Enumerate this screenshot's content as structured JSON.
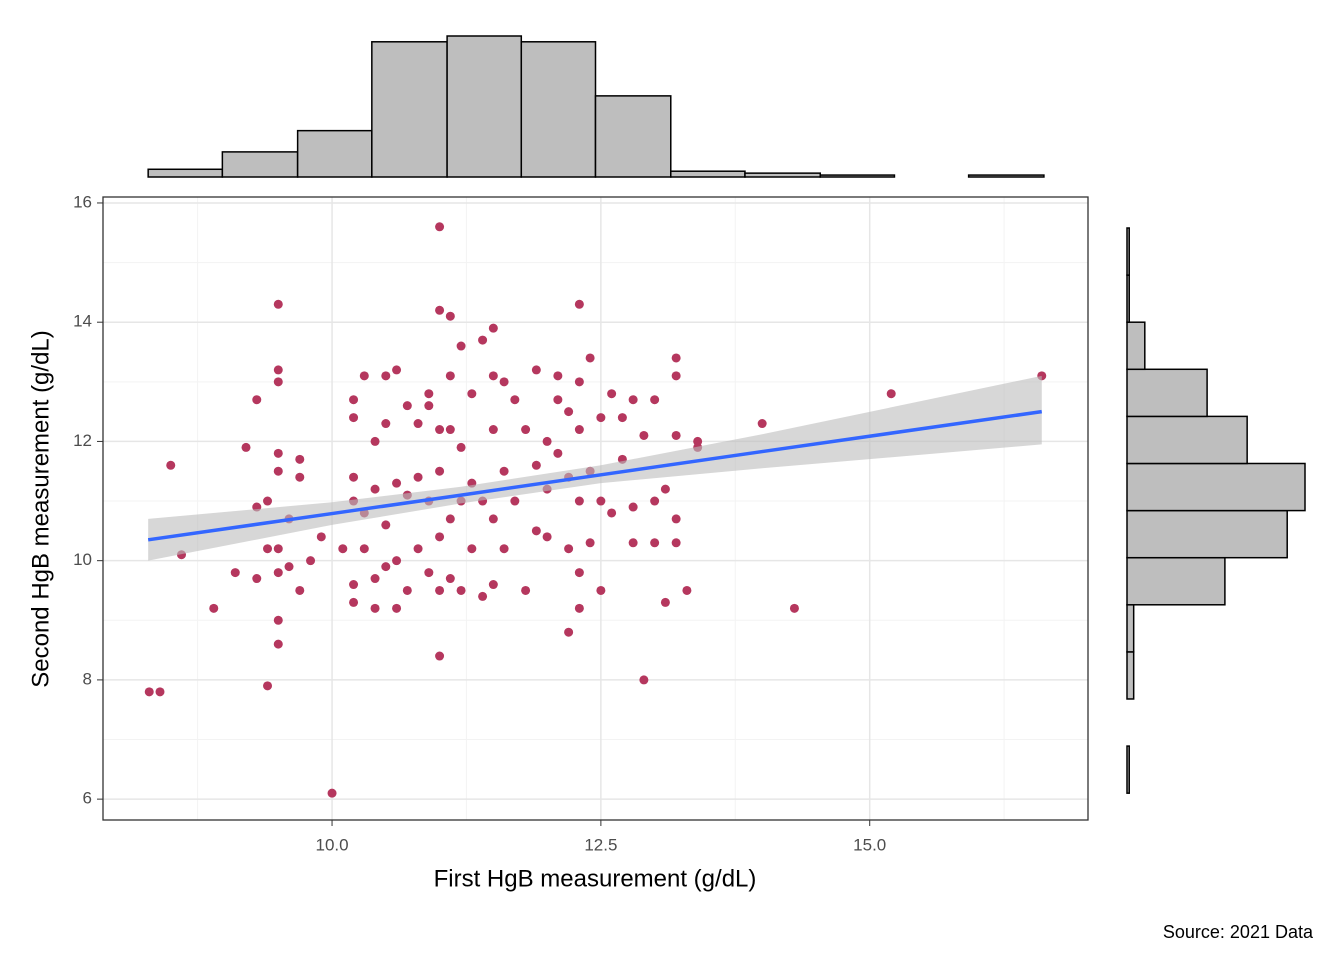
{
  "chart_data": [
    {
      "type": "scatter",
      "xlabel": "First HgB measurement (g/dL)",
      "ylabel": "Second HgB measurement (g/dL)",
      "caption": "Source: 2021 Data",
      "color": "#b5375e",
      "xlim": [
        7.87,
        17.03
      ],
      "ylim": [
        5.65,
        16.1
      ],
      "xticks": [
        {
          "value": 10,
          "label": "10.0"
        },
        12.5,
        {
          "value": 15,
          "label": "15.0"
        }
      ],
      "yticks": [
        6,
        8,
        10,
        12,
        14,
        16
      ],
      "x_minor_grid": [
        8.75,
        11.25,
        13.75,
        16.25
      ],
      "y_minor_grid": [
        7,
        9,
        11,
        13,
        15
      ],
      "grid": true,
      "x": [
        8.3,
        8.4,
        8.5,
        8.6,
        8.9,
        9.1,
        9.2,
        9.3,
        9.3,
        9.3,
        9.4,
        9.4,
        9.4,
        9.5,
        9.5,
        9.5,
        9.5,
        9.5,
        9.5,
        9.5,
        9.5,
        9.5,
        9.6,
        9.6,
        9.7,
        9.7,
        9.7,
        9.8,
        9.9,
        10.0,
        10.1,
        10.2,
        10.2,
        10.2,
        10.2,
        10.2,
        10.2,
        10.3,
        10.3,
        10.3,
        10.4,
        10.4,
        10.4,
        10.4,
        10.5,
        10.5,
        10.5,
        10.5,
        10.6,
        10.6,
        10.6,
        10.6,
        10.7,
        10.7,
        10.7,
        10.8,
        10.8,
        10.8,
        10.9,
        10.9,
        10.9,
        10.9,
        11.0,
        11.0,
        11.0,
        11.0,
        11.0,
        11.0,
        11.0,
        11.1,
        11.1,
        11.1,
        11.1,
        11.1,
        11.2,
        11.2,
        11.2,
        11.2,
        11.3,
        11.3,
        11.3,
        11.4,
        11.4,
        11.4,
        11.5,
        11.5,
        11.5,
        11.5,
        11.5,
        11.6,
        11.6,
        11.6,
        11.7,
        11.7,
        11.8,
        11.8,
        11.9,
        11.9,
        11.9,
        12.0,
        12.0,
        12.0,
        12.1,
        12.1,
        12.1,
        12.2,
        12.2,
        12.2,
        12.2,
        12.3,
        12.3,
        12.3,
        12.3,
        12.3,
        12.3,
        12.4,
        12.4,
        12.4,
        12.5,
        12.5,
        12.5,
        12.6,
        12.6,
        12.7,
        12.7,
        12.8,
        12.8,
        12.8,
        12.9,
        12.9,
        13.0,
        13.0,
        13.0,
        13.1,
        13.1,
        13.2,
        13.2,
        13.2,
        13.2,
        13.2,
        13.3,
        13.4,
        13.4,
        14.0,
        14.3,
        15.2,
        16.6
      ],
      "y": [
        7.8,
        7.8,
        11.6,
        10.1,
        9.2,
        9.8,
        11.9,
        12.7,
        10.9,
        9.7,
        10.2,
        11.0,
        7.9,
        8.6,
        9.0,
        11.8,
        14.3,
        13.2,
        13.0,
        11.5,
        10.2,
        9.8,
        10.7,
        9.9,
        11.7,
        11.4,
        9.5,
        10.0,
        10.4,
        6.1,
        10.2,
        11.0,
        9.6,
        9.3,
        12.7,
        12.4,
        11.4,
        10.8,
        10.2,
        13.1,
        12.0,
        11.2,
        9.7,
        9.2,
        13.1,
        12.3,
        10.6,
        9.9,
        13.2,
        11.3,
        10.0,
        9.2,
        12.6,
        11.1,
        9.5,
        12.3,
        11.4,
        10.2,
        12.8,
        11.0,
        9.8,
        12.6,
        14.2,
        12.2,
        11.5,
        10.4,
        9.5,
        8.4,
        15.6,
        14.1,
        13.1,
        12.2,
        10.7,
        9.7,
        13.6,
        11.9,
        11.0,
        9.5,
        12.8,
        11.3,
        10.2,
        13.7,
        11.0,
        9.4,
        13.9,
        13.1,
        12.2,
        10.7,
        9.6,
        13.0,
        11.5,
        10.2,
        12.7,
        11.0,
        12.2,
        9.5,
        13.2,
        11.6,
        10.5,
        12.0,
        11.2,
        10.4,
        13.1,
        12.7,
        11.8,
        12.5,
        11.4,
        10.2,
        8.8,
        14.3,
        13.0,
        12.2,
        11.0,
        9.8,
        9.2,
        13.4,
        11.5,
        10.3,
        12.4,
        11.0,
        9.5,
        12.8,
        10.8,
        12.4,
        11.7,
        12.7,
        10.9,
        10.3,
        8.0,
        12.1,
        12.7,
        11.0,
        10.3,
        9.3,
        11.2,
        13.4,
        13.1,
        12.1,
        10.7,
        10.3,
        9.5,
        12.0,
        11.9,
        12.3,
        9.2,
        12.8,
        13.1
      ],
      "fit": {
        "color": "#3366ff",
        "band_color": "#bdbdbd",
        "x": [
          8.29,
          10,
          11.2,
          12.5,
          14,
          16.6
        ],
        "y": [
          10.35,
          10.79,
          11.1,
          11.44,
          11.83,
          12.5
        ],
        "lower": [
          10.0,
          10.6,
          10.96,
          11.3,
          11.55,
          11.95
        ],
        "upper": [
          10.7,
          10.98,
          11.24,
          11.6,
          12.12,
          13.1
        ]
      }
    },
    {
      "type": "histogram",
      "orientation": "vertical",
      "color": "#bebebe",
      "bins": [
        8.29,
        8.98,
        9.68,
        10.37,
        11.07,
        11.76,
        12.45,
        13.15,
        13.84,
        14.54,
        15.23,
        15.92,
        16.62
      ],
      "counts": [
        4,
        13,
        24,
        70,
        73,
        70,
        42,
        3,
        2,
        1,
        0,
        1
      ]
    },
    {
      "type": "histogram",
      "orientation": "horizontal",
      "color": "#bebebe",
      "bins": [
        6.1,
        6.89,
        7.68,
        8.47,
        9.26,
        10.05,
        10.84,
        11.63,
        12.42,
        13.21,
        14.0,
        14.79,
        15.58
      ],
      "counts": [
        1,
        0,
        3,
        3,
        44,
        72,
        80,
        54,
        36,
        8,
        1,
        1
      ]
    }
  ]
}
